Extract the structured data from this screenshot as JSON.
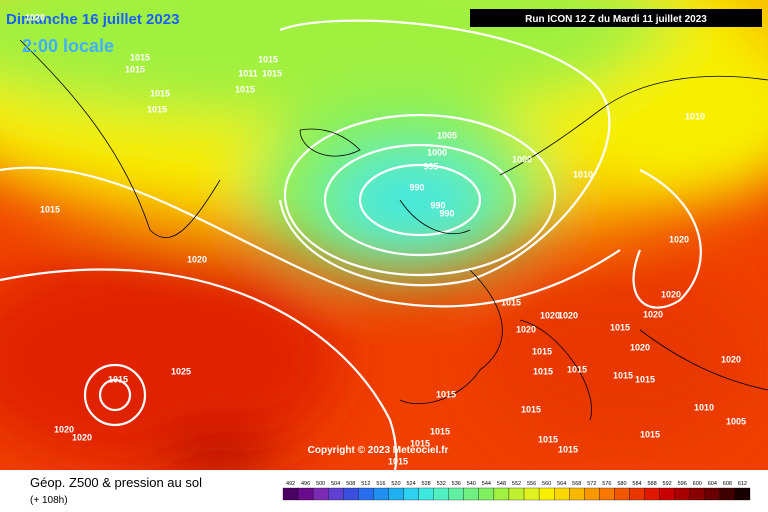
{
  "header": {
    "date": "Dimanche 16 juillet 2023",
    "time": "2:00 locale",
    "run": "Run ICON 12 Z du Mardi 11 juillet 2023"
  },
  "isobar_labels": [
    1020,
    1015,
    1015,
    1015,
    1011,
    1015,
    1015,
    1015,
    1015,
    1005,
    1000,
    995,
    1000,
    1010,
    1010,
    990,
    990,
    990,
    1015,
    1020,
    1020,
    1020,
    1020,
    1015,
    1020,
    1020,
    1020,
    1015,
    1020,
    1015,
    1015,
    1015,
    1015,
    1015,
    1020,
    1010,
    1005,
    1015,
    1025,
    1015,
    1015,
    1015,
    1015,
    1015,
    1015,
    1015,
    1015,
    1020,
    1020
  ],
  "copyright": "Copyright © 2023 Meteociel.fr",
  "footer": {
    "title": "Géop. Z500 & pression au sol",
    "lead": "(+ 108h)"
  },
  "scale": {
    "values": [
      492,
      496,
      500,
      504,
      508,
      512,
      516,
      520,
      524,
      528,
      532,
      536,
      540,
      544,
      548,
      552,
      556,
      560,
      564,
      568,
      572,
      576,
      580,
      584,
      588,
      592,
      596,
      600,
      604,
      608,
      612
    ],
    "colors": [
      "#4b0064",
      "#6a0a8c",
      "#7d2ab4",
      "#6040d0",
      "#3a4fe0",
      "#2a6ef0",
      "#2090f0",
      "#20b0f0",
      "#30d0f0",
      "#40e8e0",
      "#50f0c0",
      "#60f0a0",
      "#70f080",
      "#80f060",
      "#a0f040",
      "#c0f030",
      "#e0f020",
      "#f8f000",
      "#f8d800",
      "#f8b800",
      "#f89800",
      "#f87800",
      "#f05800",
      "#e83800",
      "#e01800",
      "#c80000",
      "#a80000",
      "#880000",
      "#680000",
      "#400000",
      "#180000"
    ]
  }
}
